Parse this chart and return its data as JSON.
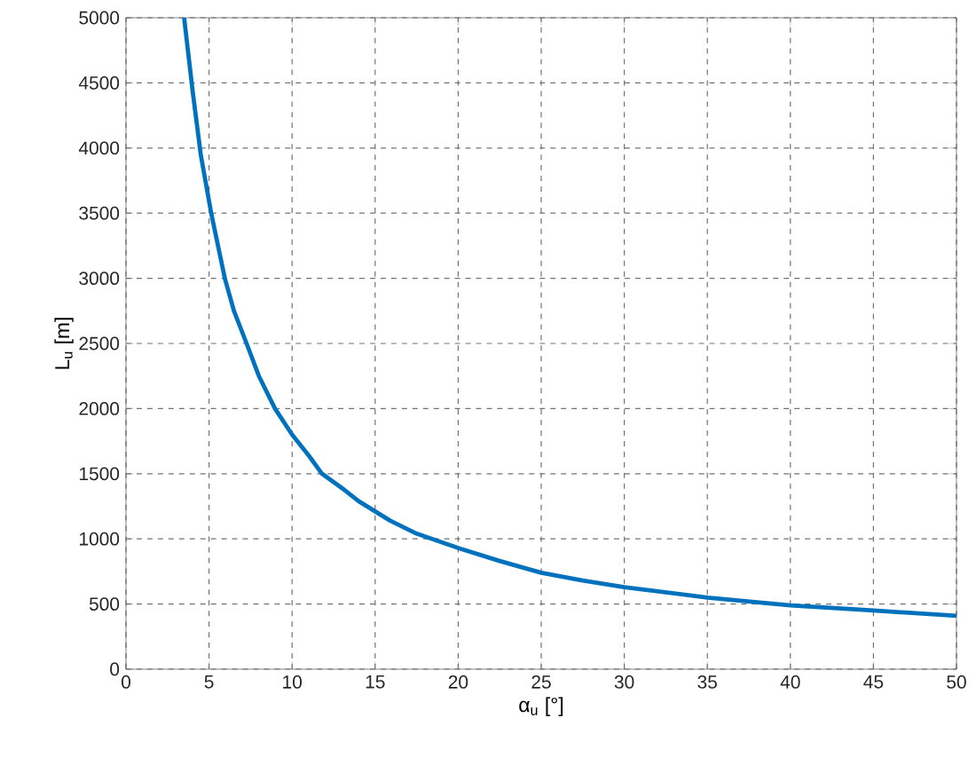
{
  "chart_data": {
    "type": "line",
    "xlabel": "α$_{u}$ [°]",
    "ylabel": "L$_{u}$ [m]",
    "x": [
      3.5,
      4,
      4.5,
      5.13,
      5.95,
      6.5,
      7.26,
      8,
      8.97,
      10,
      11,
      11.8,
      13,
      14,
      15.9,
      17.5,
      20,
      22.5,
      25,
      27.5,
      30,
      35,
      40,
      45,
      50
    ],
    "series": [
      {
        "color": "#0072bd",
        "values": [
          5000,
          4450,
          3950,
          3500,
          3000,
          2750,
          2500,
          2250,
          2000,
          1800,
          1640,
          1500,
          1390,
          1290,
          1140,
          1040,
          930,
          830,
          740,
          680,
          630,
          550,
          490,
          450,
          410
        ]
      }
    ],
    "xlim": [
      0,
      50
    ],
    "ylim": [
      0,
      5000
    ],
    "xticks": [
      0,
      5,
      10,
      15,
      20,
      25,
      30,
      35,
      40,
      45,
      50
    ],
    "yticks": [
      0,
      500,
      1000,
      1500,
      2000,
      2500,
      3000,
      3500,
      4000,
      4500,
      5000
    ],
    "grid": true,
    "line_style": "solid",
    "marker": "none"
  }
}
